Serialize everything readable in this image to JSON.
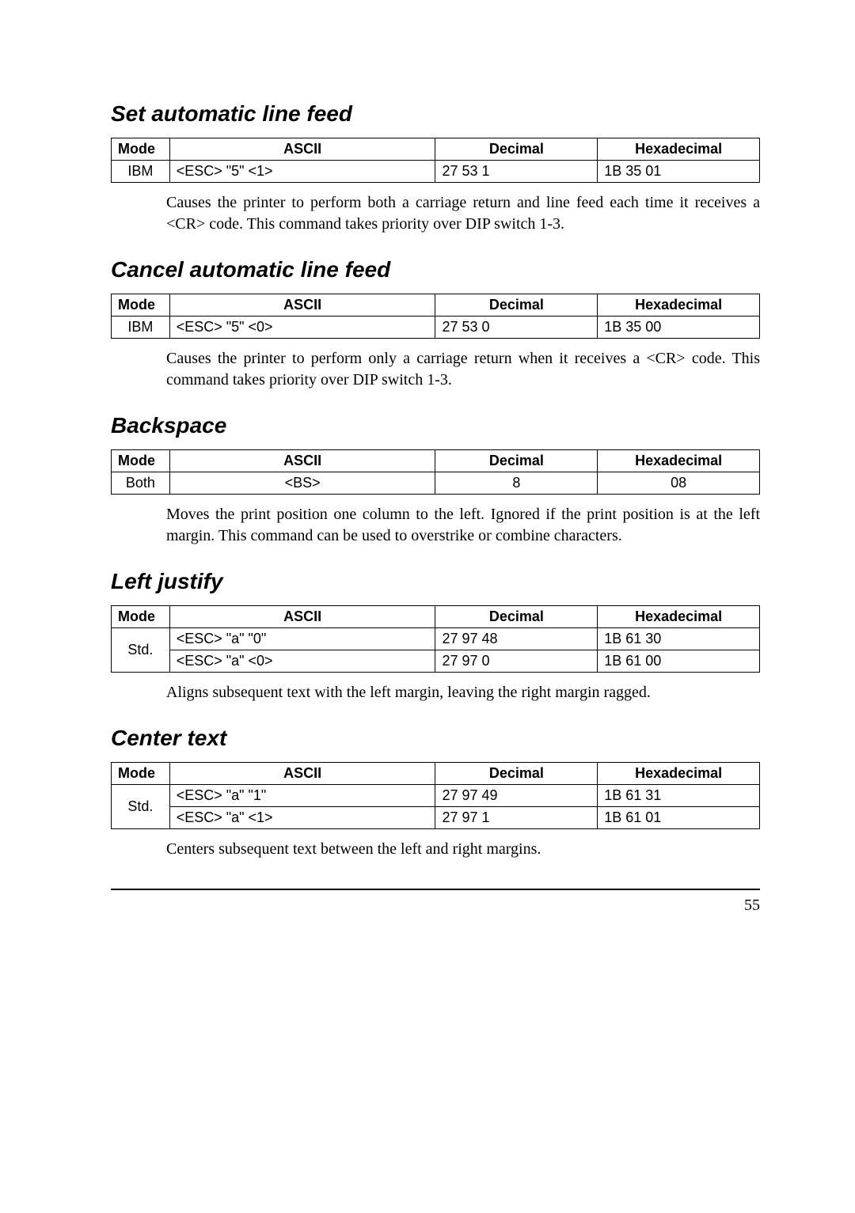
{
  "columns": {
    "mode": "Mode",
    "ascii": "ASCII",
    "decimal": "Decimal",
    "hex": "Hexadecimal"
  },
  "sections": {
    "s1": {
      "title": "Set automatic line feed",
      "rows": {
        "r0": {
          "mode": "IBM",
          "ascii": "<ESC>  \"5\"  <1>",
          "decimal": "27   53    1",
          "hex": "1B   35   01"
        }
      },
      "desc": "Causes the printer to perform both a carriage return and line feed each time it receives a <CR> code. This command takes priority over DIP switch 1-3."
    },
    "s2": {
      "title": "Cancel automatic line feed",
      "rows": {
        "r0": {
          "mode": "IBM",
          "ascii": "<ESC>  \"5\"  <0>",
          "decimal": "27   53    0",
          "hex": "1B   35   00"
        }
      },
      "desc": "Causes the printer to perform only a carriage return when it receives a <CR> code. This command takes priority over DIP switch 1-3."
    },
    "s3": {
      "title": "Backspace",
      "rows": {
        "r0": {
          "mode": "Both",
          "ascii": "<BS>",
          "decimal": "8",
          "hex": "08"
        }
      },
      "desc": "Moves the print position one column to the left. Ignored if the print position is at the left margin. This command can be used to overstrike or combine characters."
    },
    "s4": {
      "title": "Left justify",
      "rows": {
        "r0": {
          "mode": "Std.",
          "ascii": "<ESC>  \"a\"  \"0\"",
          "decimal": "27   97   48",
          "hex": "1B   61   30"
        },
        "r1": {
          "ascii": "<ESC>  \"a\"  <0>",
          "decimal": "27   97    0",
          "hex": "1B   61   00"
        }
      },
      "desc": "Aligns subsequent text with the left margin, leaving the right margin ragged."
    },
    "s5": {
      "title": "Center text",
      "rows": {
        "r0": {
          "mode": "Std.",
          "ascii": "<ESC>  \"a\"  \"1\"",
          "decimal": "27   97   49",
          "hex": "1B   61   31"
        },
        "r1": {
          "ascii": "<ESC>  \"a\"  <1>",
          "decimal": "27   97    1",
          "hex": "1B   61   01"
        }
      },
      "desc": "Centers subsequent text between the left and right margins."
    }
  },
  "page_number": "55"
}
